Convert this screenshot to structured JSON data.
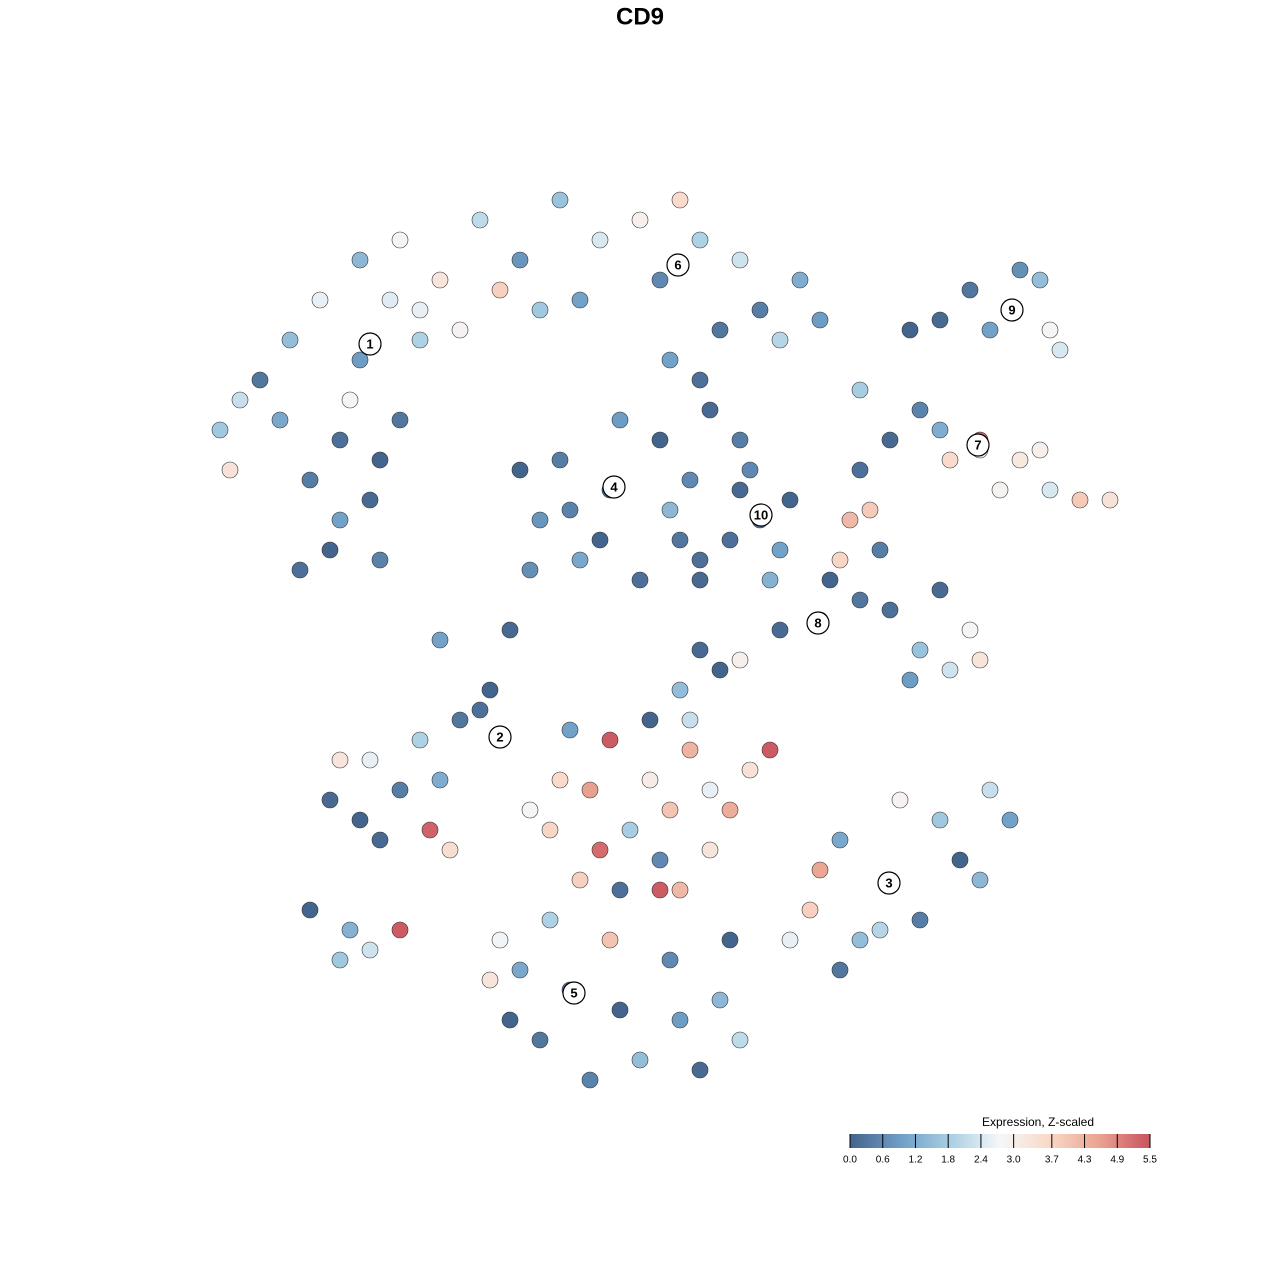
{
  "chart_data": {
    "type": "scatter",
    "title": "CD9",
    "colorbar_title": "Expression, Z-scaled",
    "colorscale": [
      "#43648c",
      "#6e9dc6",
      "#a8cfe3",
      "#f5f7f9",
      "#f9d8c7",
      "#eaa290",
      "#c9525e"
    ],
    "colorbar_ticks": [
      {
        "value": 0,
        "label": "0.0"
      },
      {
        "value": 0.6,
        "label": "0.6"
      },
      {
        "value": 1.2,
        "label": "1.2"
      },
      {
        "value": 1.8,
        "label": "1.8"
      },
      {
        "value": 2.4,
        "label": "2.4"
      },
      {
        "value": 3,
        "label": "3.0"
      },
      {
        "value": 3.7,
        "label": "3.7"
      },
      {
        "value": 4.3,
        "label": "4.3"
      },
      {
        "value": 4.9,
        "label": "4.9"
      },
      {
        "value": 5.5,
        "label": "5.5"
      }
    ],
    "clusters": [
      {
        "label": "1",
        "x": -27,
        "y": 29.6
      },
      {
        "label": "2",
        "x": -14,
        "y": -9.7
      },
      {
        "label": "3",
        "x": 24.9,
        "y": -24.3
      },
      {
        "label": "4",
        "x": -2.6,
        "y": 15.3
      },
      {
        "label": "5",
        "x": -6.6,
        "y": -35.3
      },
      {
        "label": "6",
        "x": 3.8,
        "y": 37.5
      },
      {
        "label": "7",
        "x": 33.8,
        "y": 19.5
      },
      {
        "label": "8",
        "x": 17.8,
        "y": 1.7
      },
      {
        "label": "9",
        "x": 37.2,
        "y": 33
      },
      {
        "label": "10",
        "x": 12.1,
        "y": 12.5
      }
    ],
    "x": [
      -38,
      -35,
      -32,
      -28,
      -30,
      -33,
      -27,
      -31,
      -26,
      -36,
      -40,
      -42,
      -29,
      -24,
      -22,
      -25,
      -34,
      -30,
      -41,
      -26,
      -28,
      -24,
      -20,
      -16,
      -12,
      -8,
      -4,
      0,
      2,
      6,
      10,
      12,
      16,
      -10,
      -18,
      -6,
      4,
      8,
      14,
      -14,
      18,
      -22,
      -3,
      -8,
      2,
      -10,
      4,
      -6,
      0,
      5,
      -12,
      -2,
      3,
      -7,
      -4,
      6,
      -11,
      12,
      10,
      14,
      9,
      11,
      15,
      13,
      6,
      3,
      7,
      10,
      37,
      33,
      40,
      35,
      41,
      30,
      42,
      38,
      27,
      34,
      30,
      38,
      41,
      44,
      36,
      31,
      47,
      28,
      25,
      22,
      34,
      40,
      18,
      14,
      22,
      28,
      31,
      27,
      33,
      25,
      20,
      23,
      21,
      19,
      30,
      34,
      24,
      6,
      8,
      4,
      10,
      -14,
      -18,
      -22,
      -27,
      -31,
      -28,
      -24,
      -20,
      -16,
      -26,
      -21,
      -19,
      -30,
      -15,
      -33,
      -29,
      -27,
      -24,
      -30,
      1,
      -3,
      5,
      -5,
      -8,
      3,
      7,
      -1,
      9,
      11,
      -4,
      -9,
      13,
      5,
      -7,
      2,
      7,
      -11,
      -6,
      4,
      2,
      -2,
      25,
      20,
      30,
      35,
      37,
      28,
      22,
      17,
      18,
      15,
      32,
      26,
      20,
      34,
      24,
      -7,
      -12,
      -2,
      4,
      -10,
      0,
      6,
      -5,
      -13,
      8,
      -14,
      -9,
      -15,
      3,
      10,
      -3,
      -20,
      -13,
      1,
      6,
      22,
      9
    ],
    "y": [
      26,
      30,
      34,
      28,
      20,
      16,
      14,
      9,
      8,
      22,
      24,
      21,
      24,
      22,
      30,
      34,
      7,
      12,
      17,
      18,
      38,
      40,
      36,
      42,
      38,
      44,
      40,
      42,
      36,
      40,
      38,
      33,
      36,
      33,
      31,
      34,
      44,
      31,
      30,
      35,
      32,
      33,
      15,
      18,
      20,
      12,
      10,
      8,
      6,
      16,
      17,
      22,
      13,
      13,
      10,
      8,
      7,
      12,
      15,
      9,
      10,
      17,
      14,
      6,
      26,
      28,
      23,
      20,
      33,
      35,
      36,
      31,
      31,
      32,
      29,
      37,
      31,
      19,
      21,
      18,
      15,
      14,
      15,
      18,
      14,
      23,
      20,
      25,
      20,
      19,
      2,
      1,
      4,
      -1,
      -3,
      -4,
      1,
      3,
      8,
      13,
      12,
      6,
      5,
      -2,
      9,
      -1,
      -3,
      -5,
      -2,
      -10,
      -8,
      -10,
      -12,
      -16,
      -18,
      -15,
      -14,
      -7,
      -20,
      -19,
      -21,
      -12,
      -5,
      -27,
      -29,
      -31,
      -29,
      -32,
      -14,
      -10,
      -11,
      -15,
      -14,
      -17,
      -15,
      -19,
      -17,
      -13,
      -21,
      -19,
      -11,
      -8,
      -9,
      -22,
      -21,
      -17,
      -24,
      -25,
      -25,
      -25,
      -24,
      -20,
      -18,
      -15,
      -18,
      -28,
      -30,
      -27,
      -23,
      -30,
      -22,
      -16,
      -33,
      -24,
      -29,
      -35,
      -33,
      -37,
      -38,
      -40,
      -42,
      -43,
      -44,
      -38,
      -36,
      -30,
      -28,
      -34,
      -32,
      -40,
      -30,
      0,
      1,
      -8,
      6,
      17,
      -30
    ],
    "values": [
      0.3,
      1.5,
      2.6,
      0.9,
      0.2,
      0.4,
      0.1,
      0,
      0.5,
      1.1,
      2.2,
      1.7,
      2.8,
      0.3,
      1.9,
      2.5,
      0.2,
      1,
      3.4,
      0,
      1.4,
      2.7,
      3.3,
      2.1,
      0.8,
      1.6,
      2.4,
      3,
      0.6,
      1.9,
      2.3,
      0.4,
      1.2,
      1.7,
      2.9,
      1,
      3.6,
      0.3,
      2,
      3.8,
      0.9,
      2.6,
      0.1,
      0.4,
      0,
      0.8,
      0.3,
      1.1,
      0.2,
      0.6,
      0,
      0.9,
      1.4,
      0.5,
      0,
      0.2,
      0.7,
      0.4,
      0.1,
      1,
      0.2,
      0.6,
      0,
      1.3,
      0.2,
      1,
      0.1,
      0.4,
      2,
      0.3,
      1.5,
      1,
      2.8,
      0.1,
      2.4,
      0.7,
      0,
      2.6,
      1.2,
      3.2,
      2.4,
      3.9,
      2.9,
      3.6,
      3.4,
      0.5,
      0.1,
      1.8,
      5.3,
      3,
      0.2,
      0.1,
      0.3,
      1.6,
      2.3,
      0.9,
      2.8,
      0.2,
      3.7,
      3.9,
      4.2,
      0,
      0.1,
      3.3,
      0.4,
      0.1,
      0,
      1.5,
      3,
      0,
      0.3,
      1.9,
      2.6,
      0.1,
      0,
      0.4,
      1.2,
      0.2,
      0.1,
      5.3,
      3.5,
      3.3,
      0,
      0,
      1.3,
      2.3,
      5.4,
      1.7,
      3.1,
      5.4,
      4.3,
      4.6,
      3.6,
      4,
      2.6,
      1.8,
      4.4,
      3.4,
      5.2,
      3.7,
      5.4,
      2.2,
      1,
      0.6,
      3.3,
      2.8,
      3.8,
      4.2,
      5.4,
      0.2,
      0.1,
      1.1,
      1.7,
      2.2,
      1,
      0.4,
      1.5,
      3.8,
      4.5,
      2.6,
      0,
      2.9,
      0.3,
      1.4,
      2,
      0.2,
      1.1,
      0,
      0.9,
      0.3,
      1.5,
      0.1,
      0.5,
      0,
      1.4,
      2.7,
      1.9,
      3.3,
      0.6,
      2.1,
      4,
      1,
      0.1,
      0,
      0.1,
      0.2,
      0
    ]
  }
}
